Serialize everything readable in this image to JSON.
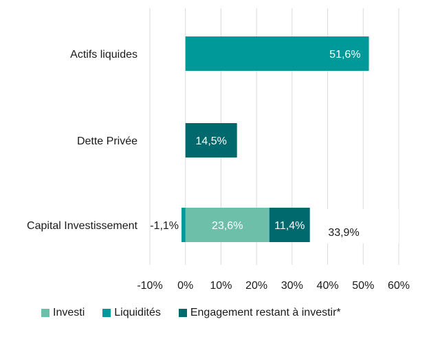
{
  "chart_data": {
    "type": "bar",
    "orientation": "horizontal",
    "stacked": true,
    "categories": [
      "Actifs liquides",
      "Dette Privée",
      "Capital Investissement"
    ],
    "series": [
      {
        "name": "Investi",
        "color": "#6dbfaa",
        "values": [
          0,
          0,
          23.6
        ]
      },
      {
        "name": "Liquidités",
        "color": "#00999a",
        "values": [
          51.6,
          0,
          -1.1
        ]
      },
      {
        "name": "Engagement restant à investir*",
        "color": "#00696e",
        "values": [
          0,
          14.5,
          11.4
        ]
      }
    ],
    "data_labels": [
      {
        "category": "Actifs liquides",
        "series": "Liquidités",
        "text": "51,6%"
      },
      {
        "category": "Dette Privée",
        "series": "Engagement restant à investir*",
        "text": "14,5%"
      },
      {
        "category": "Capital Investissement",
        "series": "Liquidités",
        "text": "-1,1%"
      },
      {
        "category": "Capital Investissement",
        "series": "Investi",
        "text": "23,6%"
      },
      {
        "category": "Capital Investissement",
        "series": "Engagement restant à investir*",
        "text": "11,4%"
      }
    ],
    "total_labels": [
      {
        "category": "Capital Investissement",
        "value": 33.9,
        "text": "33,9%"
      }
    ],
    "xlim": [
      -10,
      60
    ],
    "xticks": [
      -10,
      0,
      10,
      20,
      30,
      40,
      50,
      60
    ],
    "xtick_labels": [
      "-10%",
      "0%",
      "10%",
      "20%",
      "30%",
      "40%",
      "50%",
      "60%"
    ],
    "grid": "vertical",
    "legend_position": "bottom",
    "title": "",
    "xlabel": "",
    "ylabel": ""
  }
}
